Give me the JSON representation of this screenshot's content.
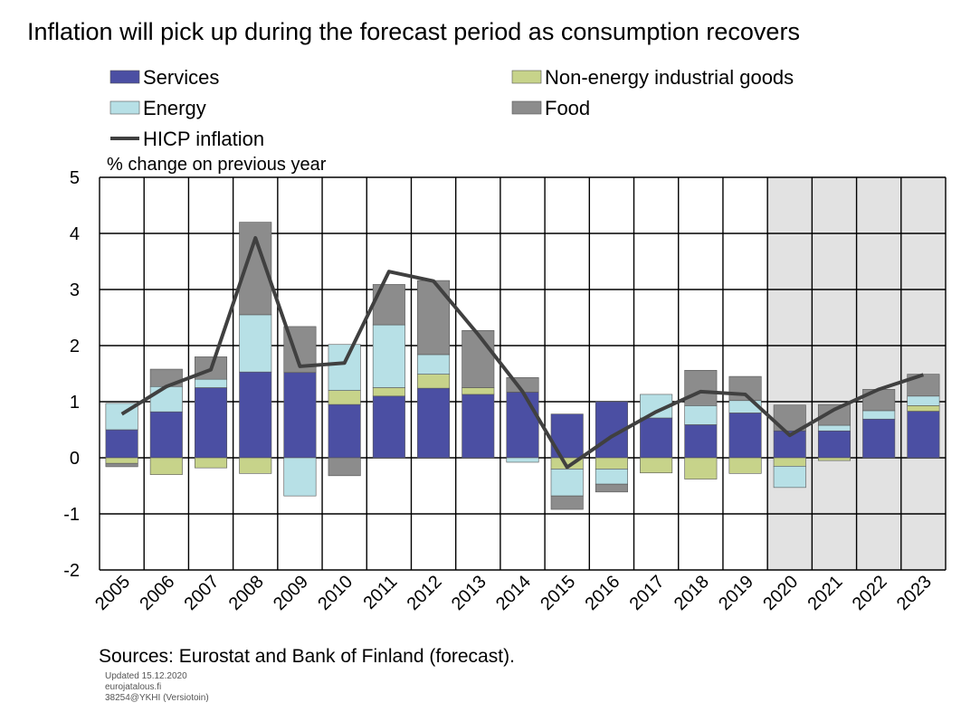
{
  "chart_data": {
    "type": "bar",
    "title": "Inflation will pick up during the forecast period as consumption recovers",
    "ylabel": "% change on previous year",
    "xlabel": "",
    "ylim": [
      -2,
      5
    ],
    "yticks": [
      5,
      4,
      3,
      2,
      1,
      0,
      -1,
      -2
    ],
    "grid": true,
    "legend_position": "top",
    "categories": [
      "2005",
      "2006",
      "2007",
      "2008",
      "2009",
      "2010",
      "2011",
      "2012",
      "2013",
      "2014",
      "2015",
      "2016",
      "2017",
      "2018",
      "2019",
      "2020",
      "2021",
      "2022",
      "2023"
    ],
    "forecast_categories": [
      "2020",
      "2021",
      "2022",
      "2023"
    ],
    "series": [
      {
        "name": "Services",
        "type": "bar",
        "color": "#4b4fa3",
        "values": [
          0.5,
          0.82,
          1.25,
          1.53,
          1.52,
          0.95,
          1.1,
          1.24,
          1.13,
          1.17,
          0.78,
          1.0,
          0.71,
          0.59,
          0.8,
          0.48,
          0.48,
          0.69,
          0.83
        ]
      },
      {
        "name": "Non-energy industrial goods",
        "type": "bar",
        "color": "#c7d38a",
        "values": [
          -0.1,
          -0.3,
          -0.18,
          -0.28,
          0.0,
          0.25,
          0.15,
          0.25,
          0.12,
          0.0,
          -0.2,
          -0.2,
          -0.27,
          -0.38,
          -0.28,
          -0.15,
          -0.05,
          0.0,
          0.1
        ]
      },
      {
        "name": "Energy",
        "type": "bar",
        "color": "#b7e0e6",
        "values": [
          0.47,
          0.45,
          0.15,
          1.02,
          -0.68,
          0.82,
          1.12,
          0.35,
          0.0,
          -0.08,
          -0.48,
          -0.27,
          0.42,
          0.34,
          0.22,
          -0.38,
          0.1,
          0.15,
          0.17
        ]
      },
      {
        "name": "Food",
        "type": "bar",
        "color": "#8c8c8c",
        "values": [
          -0.06,
          0.31,
          0.4,
          1.65,
          0.82,
          -0.32,
          0.72,
          1.32,
          1.02,
          0.26,
          -0.24,
          -0.14,
          0.0,
          0.63,
          0.43,
          0.46,
          0.37,
          0.38,
          0.39
        ]
      },
      {
        "name": "HICP inflation",
        "type": "line",
        "color": "#404040",
        "values": [
          0.78,
          1.27,
          1.57,
          3.92,
          1.63,
          1.69,
          3.32,
          3.15,
          2.2,
          1.18,
          -0.17,
          0.38,
          0.82,
          1.18,
          1.13,
          0.4,
          0.86,
          1.22,
          1.48
        ]
      }
    ]
  },
  "footer": {
    "sources": "Sources: Eurostat and Bank of Finland (forecast).",
    "updated": "Updated  15.12.2020",
    "site": "eurojatalous.fi",
    "code": "38254@YKHI  (Versiotoin)"
  }
}
